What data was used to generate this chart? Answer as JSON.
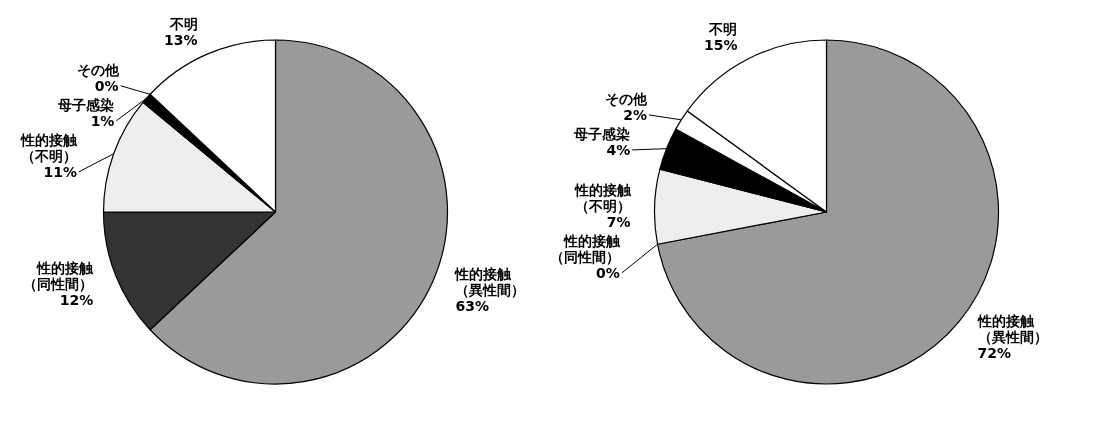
{
  "chart_data": [
    {
      "type": "pie",
      "categories": [
        "性的接触（異性間）",
        "性的接触（同性間）",
        "性的接触（不明）",
        "母子感染",
        "その他",
        "不明"
      ],
      "values": [
        63,
        12,
        11,
        1,
        0,
        13
      ],
      "value_labels": [
        "63%",
        "12%",
        "11%",
        "1%",
        "0%",
        "13%"
      ],
      "colors": [
        "#9a9a9a",
        "#333333",
        "#eeeeee",
        "#000000",
        "#ffffff",
        "#ffffff"
      ]
    },
    {
      "type": "pie",
      "categories": [
        "性的接触（異性間）",
        "性的接触（同性間）",
        "性的接触（不明）",
        "母子感染",
        "その他",
        "不明"
      ],
      "values": [
        72,
        0,
        7,
        4,
        2,
        15
      ],
      "value_labels": [
        "72%",
        "0%",
        "7%",
        "4%",
        "2%",
        "15%"
      ],
      "colors": [
        "#9a9a9a",
        "#333333",
        "#eeeeee",
        "#000000",
        "#ffffff",
        "#ffffff"
      ]
    }
  ]
}
